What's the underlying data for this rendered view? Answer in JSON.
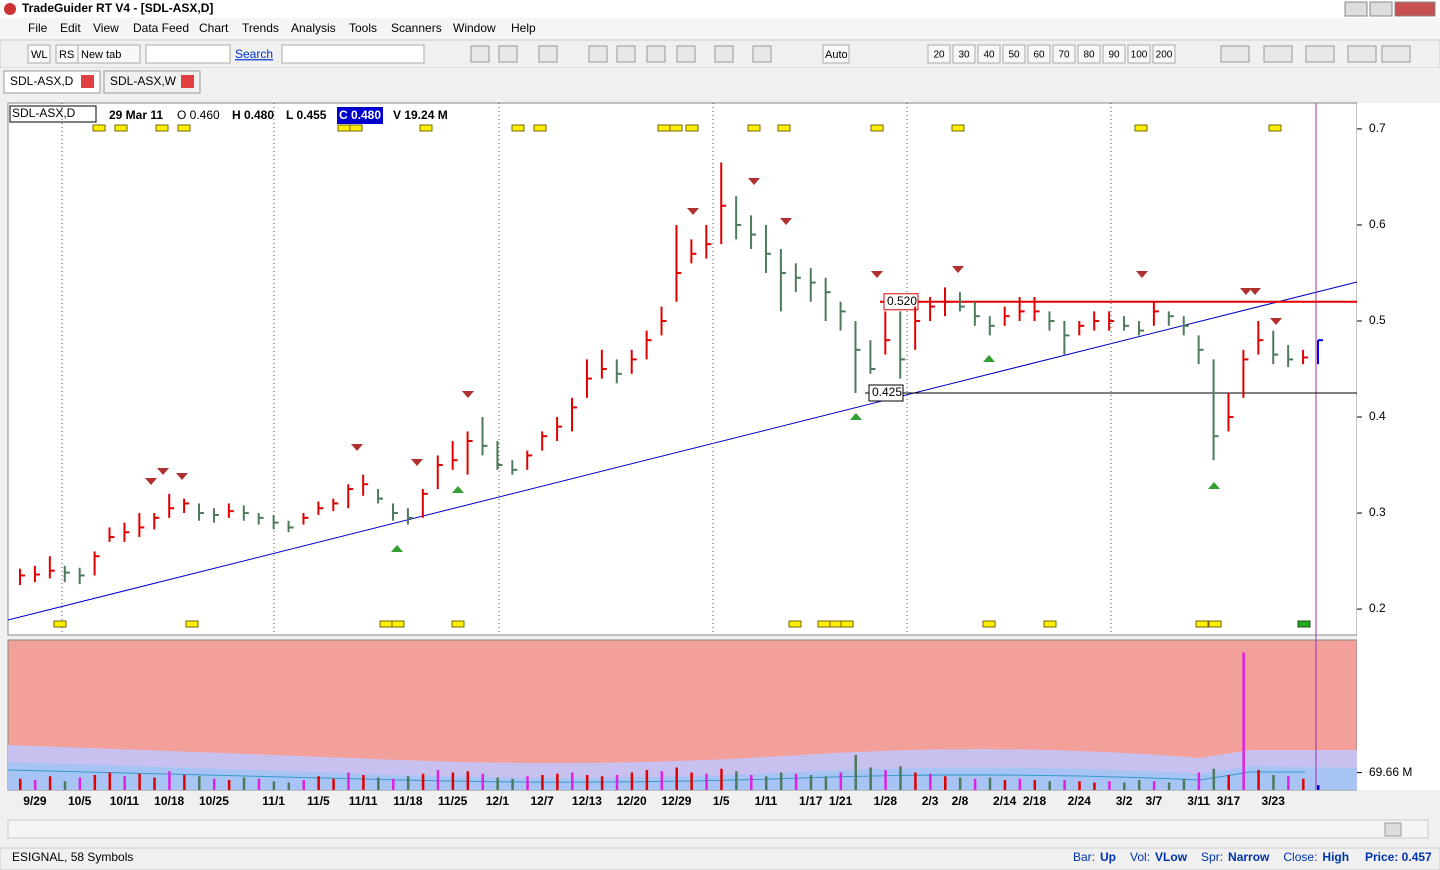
{
  "window": {
    "title": "TradeGuider RT V4 - [SDL-ASX,D]"
  },
  "menu": [
    "File",
    "Edit",
    "View",
    "Data Feed",
    "Chart",
    "Trends",
    "Analysis",
    "Tools",
    "Scanners",
    "Window",
    "Help"
  ],
  "toolbar": {
    "buttons": [
      "WL",
      "RS",
      "New tab"
    ],
    "search": "Search",
    "auto": "Auto",
    "periods": [
      "20",
      "30",
      "40",
      "50",
      "60",
      "70",
      "80",
      "90",
      "100",
      "200"
    ]
  },
  "tabs": [
    "SDL-ASX,D",
    "SDL-ASX,W"
  ],
  "status": {
    "feed": "ESIGNAL, 58 Symbols",
    "items": [
      {
        "label": "Bar:",
        "value": "Up"
      },
      {
        "label": "Vol:",
        "value": "VLow"
      },
      {
        "label": "Spr:",
        "value": "Narrow"
      },
      {
        "label": "Close:",
        "value": "High"
      }
    ],
    "price": "Price: 0.457"
  },
  "chart_data": {
    "type": "ohlc",
    "symbol": "SDL-ASX,D",
    "header": [
      "29 Mar 11",
      "O 0.460",
      "H 0.480",
      "L 0.455",
      "C 0.480",
      "V 19.24 M"
    ],
    "categories": [
      null,
      "9/29",
      null,
      null,
      "10/5",
      null,
      null,
      "10/11",
      null,
      null,
      "10/18",
      null,
      null,
      "10/25",
      null,
      null,
      null,
      "11/1",
      null,
      null,
      "11/5",
      null,
      null,
      "11/11",
      null,
      null,
      "11/18",
      null,
      null,
      "11/25",
      null,
      null,
      "12/1",
      null,
      null,
      "12/7",
      null,
      null,
      "12/13",
      null,
      null,
      "12/20",
      null,
      null,
      "12/29",
      null,
      null,
      "1/5",
      null,
      null,
      "1/11",
      null,
      null,
      "1/17",
      null,
      "1/21",
      null,
      null,
      "1/28",
      null,
      null,
      "2/3",
      null,
      "2/8",
      null,
      null,
      "2/14",
      null,
      "2/18",
      null,
      null,
      "2/24",
      null,
      null,
      "3/2",
      null,
      "3/7",
      null,
      null,
      "3/11",
      null,
      "3/17",
      null,
      null,
      "3/23",
      null,
      null,
      null
    ],
    "high": [
      0.242,
      0.245,
      0.255,
      0.245,
      0.243,
      0.26,
      0.285,
      0.29,
      0.3,
      0.3,
      0.32,
      0.315,
      0.31,
      0.305,
      0.31,
      0.308,
      0.3,
      0.298,
      0.292,
      0.3,
      0.312,
      0.315,
      0.33,
      0.34,
      0.325,
      0.31,
      0.305,
      0.325,
      0.36,
      0.375,
      0.385,
      0.4,
      0.375,
      0.355,
      0.365,
      0.385,
      0.4,
      0.42,
      0.46,
      0.47,
      0.46,
      0.47,
      0.49,
      0.515,
      0.6,
      0.585,
      0.6,
      0.665,
      0.63,
      0.61,
      0.6,
      0.575,
      0.56,
      0.555,
      0.545,
      0.52,
      0.5,
      0.48,
      0.51,
      0.51,
      0.515,
      0.525,
      0.535,
      0.53,
      0.52,
      0.505,
      0.515,
      0.525,
      0.525,
      0.51,
      0.5,
      0.5,
      0.51,
      0.51,
      0.505,
      0.5,
      0.52,
      0.51,
      0.505,
      0.485,
      0.46,
      0.425,
      0.47,
      0.5,
      0.49,
      0.475,
      0.47,
      0.48
    ],
    "low": [
      0.225,
      0.228,
      0.232,
      0.228,
      0.226,
      0.235,
      0.27,
      0.27,
      0.275,
      0.283,
      0.295,
      0.3,
      0.292,
      0.29,
      0.295,
      0.292,
      0.288,
      0.283,
      0.28,
      0.288,
      0.298,
      0.302,
      0.305,
      0.318,
      0.31,
      0.292,
      0.288,
      0.295,
      0.325,
      0.345,
      0.34,
      0.36,
      0.345,
      0.34,
      0.345,
      0.365,
      0.375,
      0.385,
      0.42,
      0.44,
      0.435,
      0.445,
      0.46,
      0.485,
      0.52,
      0.56,
      0.565,
      0.58,
      0.585,
      0.575,
      0.55,
      0.51,
      0.53,
      0.52,
      0.5,
      0.49,
      0.425,
      0.445,
      0.465,
      0.44,
      0.47,
      0.5,
      0.505,
      0.51,
      0.495,
      0.485,
      0.495,
      0.5,
      0.5,
      0.49,
      0.465,
      0.485,
      0.49,
      0.49,
      0.49,
      0.485,
      0.495,
      0.495,
      0.485,
      0.455,
      0.355,
      0.385,
      0.42,
      0.465,
      0.455,
      0.452,
      0.455,
      0.455
    ],
    "close": [
      0.235,
      0.236,
      0.24,
      0.238,
      0.235,
      0.255,
      0.275,
      0.28,
      0.285,
      0.295,
      0.305,
      0.31,
      0.3,
      0.298,
      0.302,
      0.3,
      0.295,
      0.29,
      0.285,
      0.295,
      0.305,
      0.31,
      0.325,
      0.33,
      0.315,
      0.3,
      0.295,
      0.32,
      0.35,
      0.355,
      0.375,
      0.37,
      0.35,
      0.345,
      0.36,
      0.38,
      0.39,
      0.41,
      0.44,
      0.45,
      0.445,
      0.46,
      0.48,
      0.5,
      0.55,
      0.57,
      0.58,
      0.62,
      0.6,
      0.59,
      0.57,
      0.55,
      0.545,
      0.54,
      0.53,
      0.51,
      0.47,
      0.45,
      0.48,
      0.46,
      0.5,
      0.515,
      0.52,
      0.515,
      0.505,
      0.495,
      0.505,
      0.51,
      0.51,
      0.5,
      0.485,
      0.495,
      0.5,
      0.5,
      0.495,
      0.49,
      0.51,
      0.505,
      0.495,
      0.47,
      0.38,
      0.4,
      0.46,
      0.48,
      0.465,
      0.46,
      0.462,
      0.48
    ],
    "volume": [
      45,
      40,
      55,
      35,
      50,
      60,
      70,
      55,
      65,
      50,
      75,
      60,
      55,
      45,
      40,
      50,
      45,
      35,
      30,
      40,
      55,
      45,
      70,
      60,
      50,
      45,
      55,
      65,
      80,
      70,
      75,
      65,
      50,
      45,
      55,
      60,
      65,
      70,
      60,
      55,
      60,
      70,
      80,
      75,
      90,
      70,
      65,
      85,
      75,
      60,
      55,
      70,
      65,
      60,
      55,
      70,
      140,
      90,
      80,
      95,
      70,
      65,
      55,
      50,
      45,
      50,
      40,
      45,
      40,
      35,
      40,
      35,
      30,
      35,
      30,
      40,
      35,
      30,
      45,
      70,
      85,
      60,
      550,
      80,
      60,
      55,
      45,
      19.24
    ],
    "up_color": "#e00000",
    "down_color": "#4d7a5c",
    "last_color": "#0000ee",
    "ylim": [
      0.173,
      0.727
    ],
    "yticks": [
      0.2,
      0.3,
      0.4,
      0.5,
      0.6,
      0.7
    ],
    "vlim": [
      0,
      600
    ],
    "vticks": [
      {
        "value": 69.66,
        "label": "69.66 M"
      }
    ],
    "levels": [
      {
        "value": 0.52,
        "label": "0.520",
        "color": "#e00000"
      },
      {
        "value": 0.425,
        "label": "0.425",
        "color": "#000000"
      }
    ]
  }
}
